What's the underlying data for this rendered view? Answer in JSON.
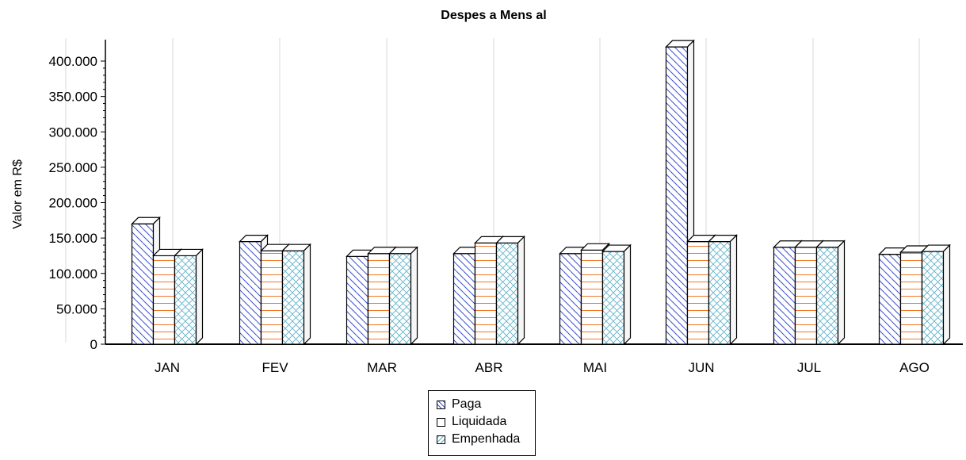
{
  "chart_data": {
    "type": "bar",
    "title": "Despes a Mens al",
    "ylabel": "Valor em R$",
    "xlabel": "",
    "categories": [
      "JAN",
      "FEV",
      "MAR",
      "ABR",
      "MAI",
      "JUN",
      "JUL",
      "AGO"
    ],
    "series": [
      {
        "name": "Paga",
        "values": [
          170000,
          145000,
          124000,
          128000,
          128000,
          420000,
          137000,
          127000
        ]
      },
      {
        "name": "Liquidada",
        "values": [
          125000,
          132000,
          128000,
          143000,
          133000,
          145000,
          137000,
          130000
        ]
      },
      {
        "name": "Empenhada",
        "values": [
          125000,
          132000,
          128000,
          143000,
          131000,
          145000,
          137000,
          131000
        ]
      }
    ],
    "ylim": [
      0,
      400000
    ],
    "yticks": [
      {
        "value": 0,
        "label": "0"
      },
      {
        "value": 50000,
        "label": "50.000"
      },
      {
        "value": 100000,
        "label": "100.000"
      },
      {
        "value": 150000,
        "label": "150.000"
      },
      {
        "value": 200000,
        "label": "200.000"
      },
      {
        "value": 250000,
        "label": "250.000"
      },
      {
        "value": 300000,
        "label": "300.000"
      },
      {
        "value": 350000,
        "label": "350.000"
      },
      {
        "value": 400000,
        "label": "400.000"
      }
    ],
    "grid": "vertical",
    "legend_position": "bottom-center",
    "style": "3d",
    "colors": {
      "Paga": "#3b4fd0",
      "Liquidada": "#f07a2a",
      "Empenhada": "#5bb0c8",
      "face": "#ffffff",
      "side": "#f6f6f6",
      "outline": "#000000",
      "grid": "#d8d8d8"
    },
    "patterns": {
      "Paga": "diagonal-backslash",
      "Liquidada": "horizontal-lines",
      "Empenhada": "cross-hatch"
    }
  }
}
